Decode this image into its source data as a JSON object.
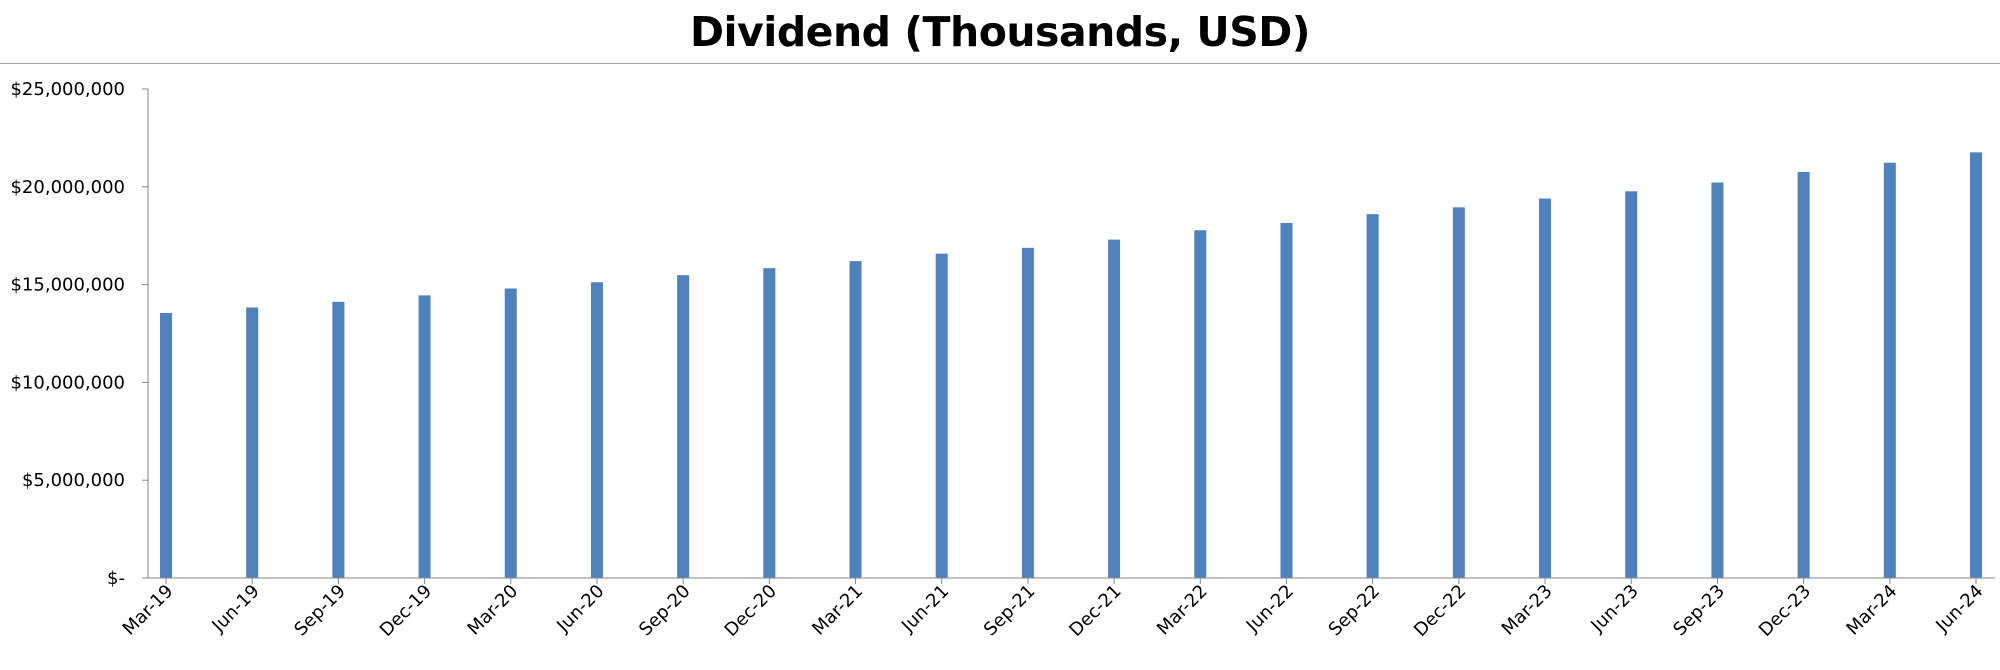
{
  "chart_data": {
    "type": "bar",
    "title": "Dividend (Thousands, USD)",
    "xlabel": "",
    "ylabel": "",
    "categories": [
      "Mar-19",
      "Jun-19",
      "Sep-19",
      "Dec-19",
      "Mar-20",
      "Jun-20",
      "Sep-20",
      "Dec-20",
      "Mar-21",
      "Jun-21",
      "Sep-21",
      "Dec-21",
      "Mar-22",
      "Jun-22",
      "Sep-22",
      "Dec-22",
      "Mar-23",
      "Jun-23",
      "Sep-23",
      "Dec-23",
      "Mar-24",
      "Jun-24"
    ],
    "series": [
      {
        "values": [
          13550000,
          13830000,
          14120000,
          14450000,
          14800000,
          15120000,
          15480000,
          15840000,
          16200000,
          16580000,
          16880000,
          17300000,
          17780000,
          18150000,
          18600000,
          18950000,
          19400000,
          19770000,
          20220000,
          20760000,
          21230000,
          21760000
        ]
      }
    ],
    "ylim": [
      0,
      25000000
    ],
    "yticks": [
      0,
      5000000,
      10000000,
      15000000,
      20000000,
      25000000
    ],
    "ytick_labels": [
      "$-",
      "$5,000,000",
      "$10,000,000",
      "$15,000,000",
      "$20,000,000",
      "$25,000,000"
    ],
    "grid": false,
    "legend": "none",
    "colors": {
      "bar": "#4f81bd",
      "axis": "#868686",
      "title_rule": "#a6a6a6"
    }
  }
}
